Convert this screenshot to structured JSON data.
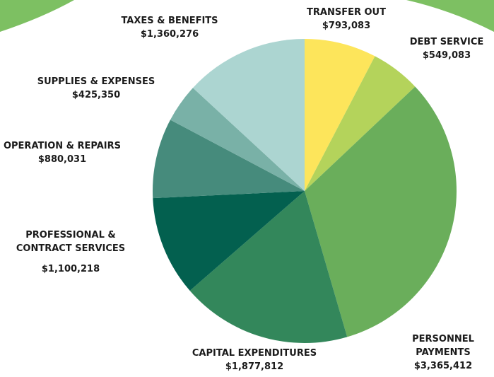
{
  "chart_data": {
    "type": "pie",
    "categories": [
      "TRANSFER OUT",
      "DEBT SERVICE",
      "PERSONNEL PAYMENTS",
      "CAPITAL EXPENDITURES",
      "PROFESSIONAL & CONTRACT SERVICES",
      "OPERATION & REPAIRS",
      "SUPPLIES & EXPENSES",
      "TAXES & BENEFITS"
    ],
    "values": [
      793083,
      549083,
      3365412,
      1877812,
      1100218,
      880031,
      425350,
      1360276
    ],
    "value_labels": [
      "$793,083",
      "$549,083",
      "$3,365,412",
      "$1,877,812",
      "$1,100,218",
      "$880,031",
      "$425,350",
      "$1,360,276"
    ],
    "colors": [
      "#fde55b",
      "#b4d35b",
      "#6aae5b",
      "#33875b",
      "#03604f",
      "#468b7c",
      "#79b1a7",
      "#acd5d1"
    ]
  }
}
